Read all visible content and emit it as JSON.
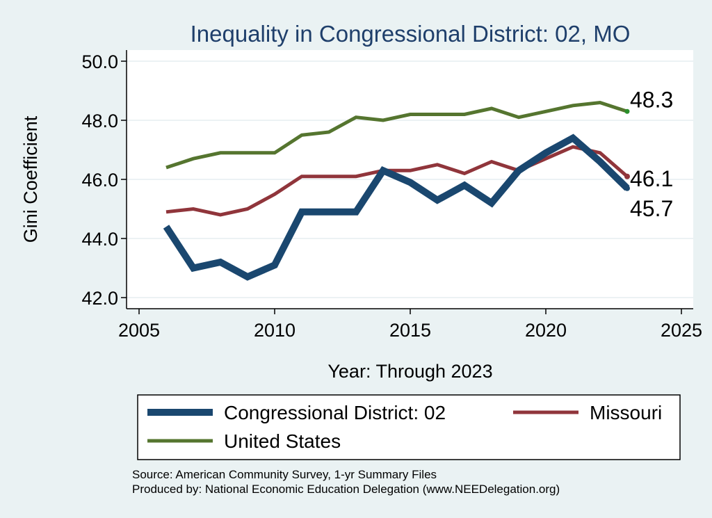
{
  "chart_data": {
    "type": "line",
    "title": "Inequality in Congressional District:  02, MO",
    "xlabel": "Year: Through 2023",
    "ylabel": "Gini Coefficient",
    "xlim": [
      2005,
      2025
    ],
    "ylim": [
      42.0,
      50.0
    ],
    "xticks": [
      2005,
      2010,
      2015,
      2020,
      2025
    ],
    "yticks": [
      42.0,
      44.0,
      46.0,
      48.0,
      50.0
    ],
    "ytick_labels": [
      "42.0",
      "44.0",
      "46.0",
      "48.0",
      "50.0"
    ],
    "grid": "horizontal",
    "series": [
      {
        "name": "Congressional District:  02",
        "color": "#1a476f",
        "x": [
          2006,
          2007,
          2008,
          2009,
          2010,
          2011,
          2012,
          2013,
          2014,
          2015,
          2016,
          2017,
          2018,
          2019,
          2020,
          2021,
          2022,
          2023
        ],
        "values": [
          44.4,
          43.0,
          43.2,
          42.7,
          43.1,
          44.9,
          44.9,
          44.9,
          46.3,
          45.9,
          45.3,
          45.8,
          45.2,
          46.3,
          46.9,
          47.4,
          46.6,
          45.7
        ],
        "end_label": "45.7"
      },
      {
        "name": "Missouri",
        "color": "#90353b",
        "x": [
          2006,
          2007,
          2008,
          2009,
          2010,
          2011,
          2012,
          2013,
          2014,
          2015,
          2016,
          2017,
          2018,
          2019,
          2020,
          2021,
          2022,
          2023
        ],
        "values": [
          44.9,
          45.0,
          44.8,
          45.0,
          45.5,
          46.1,
          46.1,
          46.1,
          46.3,
          46.3,
          46.5,
          46.2,
          46.6,
          46.3,
          46.7,
          47.1,
          46.9,
          46.1
        ],
        "end_label": "46.1"
      },
      {
        "name": "United States",
        "color": "#55752f",
        "x": [
          2006,
          2007,
          2008,
          2009,
          2010,
          2011,
          2012,
          2013,
          2014,
          2015,
          2016,
          2017,
          2018,
          2019,
          2020,
          2021,
          2022,
          2023
        ],
        "values": [
          46.4,
          46.7,
          46.9,
          46.9,
          46.9,
          47.5,
          47.6,
          48.1,
          48.0,
          48.2,
          48.2,
          48.2,
          48.4,
          48.1,
          48.3,
          48.5,
          48.6,
          48.3
        ],
        "end_label": "48.3"
      }
    ],
    "legend": {
      "position": "bottom",
      "entries": [
        "Congressional District:  02",
        "Missouri",
        "United States"
      ]
    },
    "source_lines": [
      "Source: American Community Survey, 1-yr Summary Files",
      "Produced by: National Economic Education Delegation (www.NEEDelegation.org)"
    ]
  }
}
